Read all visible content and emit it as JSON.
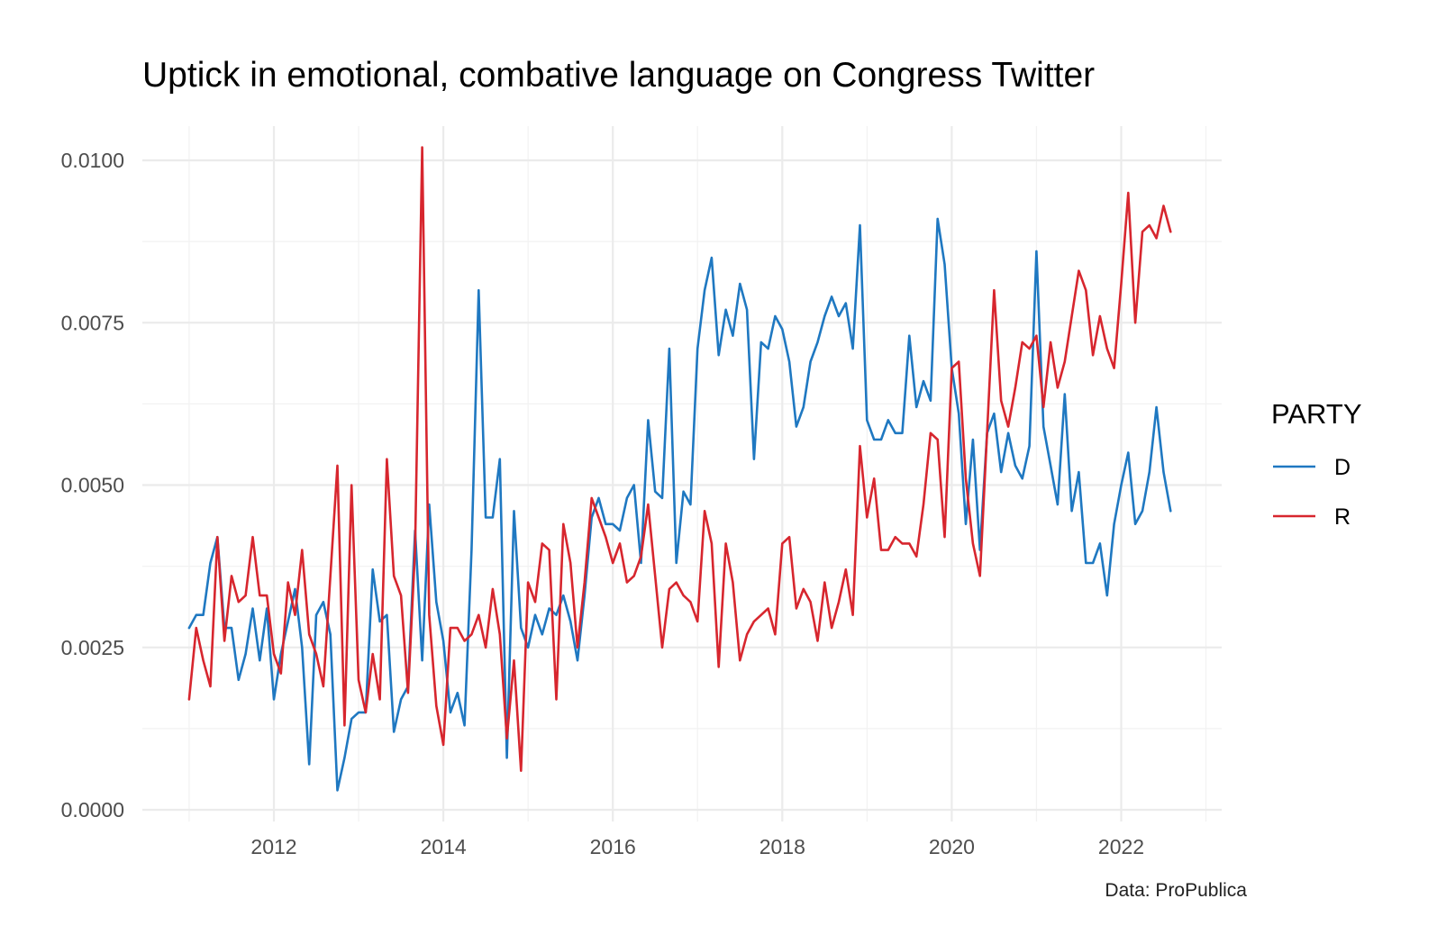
{
  "chart_data": {
    "type": "line",
    "title": "Uptick in emotional, combative language on Congress Twitter",
    "caption": "Data: ProPublica",
    "xlabel": "",
    "ylabel": "",
    "xlim": [
      2010.4,
      2022.9
    ],
    "ylim": [
      0,
      0.0103
    ],
    "x_ticks": [
      {
        "value": 2012,
        "label": "2012"
      },
      {
        "value": 2014,
        "label": "2014"
      },
      {
        "value": 2016,
        "label": "2016"
      },
      {
        "value": 2018,
        "label": "2018"
      },
      {
        "value": 2020,
        "label": "2020"
      },
      {
        "value": 2022,
        "label": "2022"
      }
    ],
    "y_ticks": [
      {
        "value": 0,
        "label": "0.0000"
      },
      {
        "value": 0.0025,
        "label": "0.0025"
      },
      {
        "value": 0.005,
        "label": "0.0050"
      },
      {
        "value": 0.0075,
        "label": "0.0075"
      },
      {
        "value": 0.01,
        "label": "0.0100"
      }
    ],
    "grid": true,
    "legend": {
      "title": "PARTY",
      "position": "right"
    },
    "x_start": 2011.0,
    "x_step": 0.08333,
    "series": [
      {
        "name": "D",
        "color": "#1f78c1",
        "values": [
          0.0028,
          0.003,
          0.003,
          0.0038,
          0.0042,
          0.0028,
          0.0028,
          0.002,
          0.0024,
          0.0031,
          0.0023,
          0.0031,
          0.0017,
          0.0024,
          0.0029,
          0.0034,
          0.0025,
          0.0007,
          0.003,
          0.0032,
          0.0027,
          0.0003,
          0.0008,
          0.0014,
          0.0015,
          0.0015,
          0.0037,
          0.0029,
          0.003,
          0.0012,
          0.0017,
          0.0019,
          0.0043,
          0.0023,
          0.0047,
          0.0032,
          0.0026,
          0.0015,
          0.0018,
          0.0013,
          0.004,
          0.008,
          0.0045,
          0.0045,
          0.0054,
          0.0008,
          0.0046,
          0.0028,
          0.0025,
          0.003,
          0.0027,
          0.0031,
          0.003,
          0.0033,
          0.0029,
          0.0023,
          0.0033,
          0.0045,
          0.0048,
          0.0044,
          0.0044,
          0.0043,
          0.0048,
          0.005,
          0.0038,
          0.006,
          0.0049,
          0.0048,
          0.0071,
          0.0038,
          0.0049,
          0.0047,
          0.0071,
          0.008,
          0.0085,
          0.007,
          0.0077,
          0.0073,
          0.0081,
          0.0077,
          0.0054,
          0.0072,
          0.0071,
          0.0076,
          0.0074,
          0.0069,
          0.0059,
          0.0062,
          0.0069,
          0.0072,
          0.0076,
          0.0079,
          0.0076,
          0.0078,
          0.0071,
          0.009,
          0.006,
          0.0057,
          0.0057,
          0.006,
          0.0058,
          0.0058,
          0.0073,
          0.0062,
          0.0066,
          0.0063,
          0.0091,
          0.0084,
          0.0068,
          0.0061,
          0.0044,
          0.0057,
          0.004,
          0.0058,
          0.0061,
          0.0052,
          0.0058,
          0.0053,
          0.0051,
          0.0056,
          0.0086,
          0.0059,
          0.0053,
          0.0047,
          0.0064,
          0.0046,
          0.0052,
          0.0038,
          0.0038,
          0.0041,
          0.0033,
          0.0044,
          0.005,
          0.0055,
          0.0044,
          0.0046,
          0.0052,
          0.0062,
          0.0052,
          0.0046
        ]
      },
      {
        "name": "R",
        "color": "#d7262e",
        "values": [
          0.0017,
          0.0028,
          0.0023,
          0.0019,
          0.0042,
          0.0026,
          0.0036,
          0.0032,
          0.0033,
          0.0042,
          0.0033,
          0.0033,
          0.0024,
          0.0021,
          0.0035,
          0.003,
          0.004,
          0.0027,
          0.0024,
          0.0019,
          0.0036,
          0.0053,
          0.0013,
          0.005,
          0.002,
          0.0015,
          0.0024,
          0.0017,
          0.0054,
          0.0036,
          0.0033,
          0.0018,
          0.004,
          0.0102,
          0.003,
          0.0016,
          0.001,
          0.0028,
          0.0028,
          0.0026,
          0.0027,
          0.003,
          0.0025,
          0.0034,
          0.0027,
          0.0011,
          0.0023,
          0.0006,
          0.0035,
          0.0032,
          0.0041,
          0.004,
          0.0017,
          0.0044,
          0.0038,
          0.0025,
          0.0035,
          0.0048,
          0.0045,
          0.0042,
          0.0038,
          0.0041,
          0.0035,
          0.0036,
          0.0039,
          0.0047,
          0.0036,
          0.0025,
          0.0034,
          0.0035,
          0.0033,
          0.0032,
          0.0029,
          0.0046,
          0.0041,
          0.0022,
          0.0041,
          0.0035,
          0.0023,
          0.0027,
          0.0029,
          0.003,
          0.0031,
          0.0027,
          0.0041,
          0.0042,
          0.0031,
          0.0034,
          0.0032,
          0.0026,
          0.0035,
          0.0028,
          0.0032,
          0.0037,
          0.003,
          0.0056,
          0.0045,
          0.0051,
          0.004,
          0.004,
          0.0042,
          0.0041,
          0.0041,
          0.0039,
          0.0047,
          0.0058,
          0.0057,
          0.0042,
          0.0068,
          0.0069,
          0.0051,
          0.0041,
          0.0036,
          0.0058,
          0.008,
          0.0063,
          0.0059,
          0.0065,
          0.0072,
          0.0071,
          0.0073,
          0.0062,
          0.0072,
          0.0065,
          0.0069,
          0.0076,
          0.0083,
          0.008,
          0.007,
          0.0076,
          0.0071,
          0.0068,
          0.0081,
          0.0095,
          0.0075,
          0.0089,
          0.009,
          0.0088,
          0.0093,
          0.0089
        ]
      }
    ]
  }
}
